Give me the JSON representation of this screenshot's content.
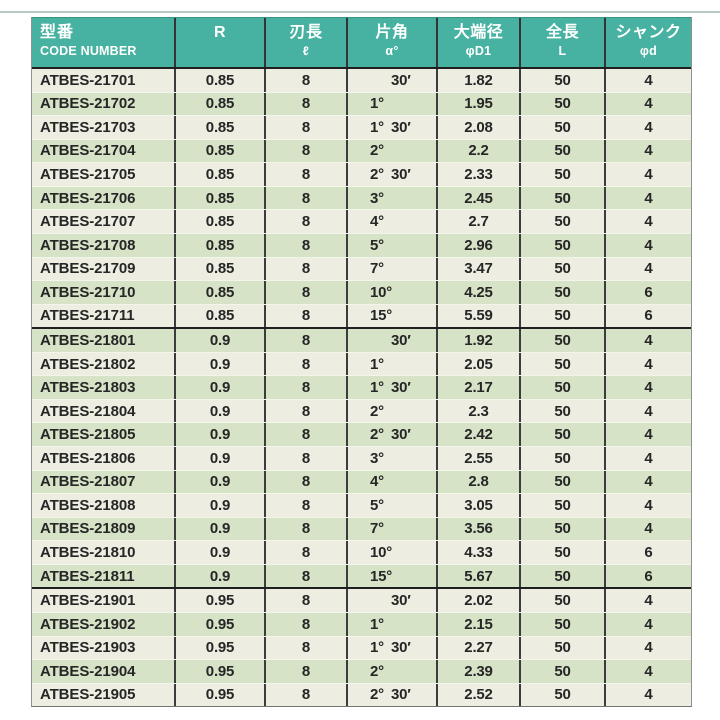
{
  "page": {
    "background": "#ffffff",
    "top_rule_color": "#b9c8c3"
  },
  "table": {
    "header": {
      "bg_color": "#48b2a2",
      "text_color": "#ffffff",
      "columns": [
        {
          "id": "code",
          "label_jp": "型番",
          "label_sub": "CODE NUMBER"
        },
        {
          "id": "r",
          "label_jp": "R",
          "label_sub": ""
        },
        {
          "id": "flute",
          "label_jp": "刃長",
          "label_sub": "ℓ"
        },
        {
          "id": "angle",
          "label_jp": "片角",
          "label_sub": "α°"
        },
        {
          "id": "dia",
          "label_jp": "大端径",
          "label_sub": "φD1"
        },
        {
          "id": "length",
          "label_jp": "全長",
          "label_sub": "L"
        },
        {
          "id": "shank",
          "label_jp": "シャンク",
          "label_sub": "φd"
        }
      ]
    },
    "row_colors": {
      "odd": "#edeee1",
      "even": "#d6e3c6"
    },
    "groups": [
      {
        "r_value": "0.85",
        "rows": [
          {
            "code": "ATBES-21701",
            "r": "0.85",
            "flute": "8",
            "angle_deg": "",
            "angle_min": "30′",
            "dia": "1.82",
            "length": "50",
            "shank": "4"
          },
          {
            "code": "ATBES-21702",
            "r": "0.85",
            "flute": "8",
            "angle_deg": "1°",
            "angle_min": "",
            "dia": "1.95",
            "length": "50",
            "shank": "4"
          },
          {
            "code": "ATBES-21703",
            "r": "0.85",
            "flute": "8",
            "angle_deg": "1°",
            "angle_min": "30′",
            "dia": "2.08",
            "length": "50",
            "shank": "4"
          },
          {
            "code": "ATBES-21704",
            "r": "0.85",
            "flute": "8",
            "angle_deg": "2°",
            "angle_min": "",
            "dia": "2.2",
            "length": "50",
            "shank": "4"
          },
          {
            "code": "ATBES-21705",
            "r": "0.85",
            "flute": "8",
            "angle_deg": "2°",
            "angle_min": "30′",
            "dia": "2.33",
            "length": "50",
            "shank": "4"
          },
          {
            "code": "ATBES-21706",
            "r": "0.85",
            "flute": "8",
            "angle_deg": "3°",
            "angle_min": "",
            "dia": "2.45",
            "length": "50",
            "shank": "4"
          },
          {
            "code": "ATBES-21707",
            "r": "0.85",
            "flute": "8",
            "angle_deg": "4°",
            "angle_min": "",
            "dia": "2.7",
            "length": "50",
            "shank": "4"
          },
          {
            "code": "ATBES-21708",
            "r": "0.85",
            "flute": "8",
            "angle_deg": "5°",
            "angle_min": "",
            "dia": "2.96",
            "length": "50",
            "shank": "4"
          },
          {
            "code": "ATBES-21709",
            "r": "0.85",
            "flute": "8",
            "angle_deg": "7°",
            "angle_min": "",
            "dia": "3.47",
            "length": "50",
            "shank": "4"
          },
          {
            "code": "ATBES-21710",
            "r": "0.85",
            "flute": "8",
            "angle_deg": "10°",
            "angle_min": "",
            "dia": "4.25",
            "length": "50",
            "shank": "6"
          },
          {
            "code": "ATBES-21711",
            "r": "0.85",
            "flute": "8",
            "angle_deg": "15°",
            "angle_min": "",
            "dia": "5.59",
            "length": "50",
            "shank": "6"
          }
        ]
      },
      {
        "r_value": "0.9",
        "rows": [
          {
            "code": "ATBES-21801",
            "r": "0.9",
            "flute": "8",
            "angle_deg": "",
            "angle_min": "30′",
            "dia": "1.92",
            "length": "50",
            "shank": "4"
          },
          {
            "code": "ATBES-21802",
            "r": "0.9",
            "flute": "8",
            "angle_deg": "1°",
            "angle_min": "",
            "dia": "2.05",
            "length": "50",
            "shank": "4"
          },
          {
            "code": "ATBES-21803",
            "r": "0.9",
            "flute": "8",
            "angle_deg": "1°",
            "angle_min": "30′",
            "dia": "2.17",
            "length": "50",
            "shank": "4"
          },
          {
            "code": "ATBES-21804",
            "r": "0.9",
            "flute": "8",
            "angle_deg": "2°",
            "angle_min": "",
            "dia": "2.3",
            "length": "50",
            "shank": "4"
          },
          {
            "code": "ATBES-21805",
            "r": "0.9",
            "flute": "8",
            "angle_deg": "2°",
            "angle_min": "30′",
            "dia": "2.42",
            "length": "50",
            "shank": "4"
          },
          {
            "code": "ATBES-21806",
            "r": "0.9",
            "flute": "8",
            "angle_deg": "3°",
            "angle_min": "",
            "dia": "2.55",
            "length": "50",
            "shank": "4"
          },
          {
            "code": "ATBES-21807",
            "r": "0.9",
            "flute": "8",
            "angle_deg": "4°",
            "angle_min": "",
            "dia": "2.8",
            "length": "50",
            "shank": "4"
          },
          {
            "code": "ATBES-21808",
            "r": "0.9",
            "flute": "8",
            "angle_deg": "5°",
            "angle_min": "",
            "dia": "3.05",
            "length": "50",
            "shank": "4"
          },
          {
            "code": "ATBES-21809",
            "r": "0.9",
            "flute": "8",
            "angle_deg": "7°",
            "angle_min": "",
            "dia": "3.56",
            "length": "50",
            "shank": "4"
          },
          {
            "code": "ATBES-21810",
            "r": "0.9",
            "flute": "8",
            "angle_deg": "10°",
            "angle_min": "",
            "dia": "4.33",
            "length": "50",
            "shank": "6"
          },
          {
            "code": "ATBES-21811",
            "r": "0.9",
            "flute": "8",
            "angle_deg": "15°",
            "angle_min": "",
            "dia": "5.67",
            "length": "50",
            "shank": "6"
          }
        ]
      },
      {
        "r_value": "0.95",
        "rows": [
          {
            "code": "ATBES-21901",
            "r": "0.95",
            "flute": "8",
            "angle_deg": "",
            "angle_min": "30′",
            "dia": "2.02",
            "length": "50",
            "shank": "4"
          },
          {
            "code": "ATBES-21902",
            "r": "0.95",
            "flute": "8",
            "angle_deg": "1°",
            "angle_min": "",
            "dia": "2.15",
            "length": "50",
            "shank": "4"
          },
          {
            "code": "ATBES-21903",
            "r": "0.95",
            "flute": "8",
            "angle_deg": "1°",
            "angle_min": "30′",
            "dia": "2.27",
            "length": "50",
            "shank": "4"
          },
          {
            "code": "ATBES-21904",
            "r": "0.95",
            "flute": "8",
            "angle_deg": "2°",
            "angle_min": "",
            "dia": "2.39",
            "length": "50",
            "shank": "4"
          },
          {
            "code": "ATBES-21905",
            "r": "0.95",
            "flute": "8",
            "angle_deg": "2°",
            "angle_min": "30′",
            "dia": "2.52",
            "length": "50",
            "shank": "4"
          }
        ]
      }
    ]
  }
}
